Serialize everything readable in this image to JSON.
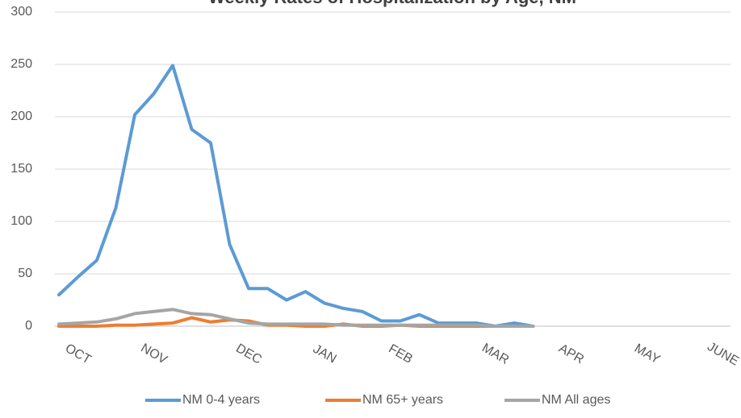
{
  "chart_data": {
    "type": "line",
    "title": "Weekly Rates of Hospitalization by Age, NM",
    "categories": [
      null,
      "OCT",
      null,
      null,
      null,
      "NOV",
      null,
      null,
      null,
      null,
      "DEC",
      null,
      null,
      null,
      "JAN",
      null,
      null,
      null,
      "FEB",
      null,
      null,
      null,
      null,
      "MAR",
      null,
      null,
      null,
      "APR",
      null,
      null,
      null,
      "MAY",
      null,
      null,
      null,
      "JUNE"
    ],
    "series": [
      {
        "name": "NM 0-4 years",
        "color": "#5b9bd5",
        "values": [
          30,
          47,
          63,
          113,
          202,
          222,
          249,
          188,
          175,
          78,
          36,
          36,
          25,
          33,
          22,
          17,
          14,
          5,
          5,
          11,
          3,
          3,
          3,
          0,
          3,
          0,
          null,
          null,
          null,
          null,
          null,
          null,
          null,
          null,
          null,
          null
        ]
      },
      {
        "name": "NM 65+ years",
        "color": "#ed7d31",
        "values": [
          0,
          0,
          0,
          1,
          1,
          2,
          3,
          8,
          4,
          6,
          5,
          1,
          1,
          0,
          0,
          2,
          0,
          0,
          1,
          0,
          0,
          0,
          0,
          0,
          0,
          0,
          null,
          null,
          null,
          null,
          null,
          null,
          null,
          null,
          null,
          null
        ]
      },
      {
        "name": "NM All ages",
        "color": "#a5a5a5",
        "values": [
          2,
          3,
          4,
          7,
          12,
          14,
          16,
          12,
          11,
          7,
          3,
          2,
          2,
          2,
          2,
          1,
          1,
          1,
          1,
          1,
          1,
          1,
          1,
          0,
          0,
          0,
          null,
          null,
          null,
          null,
          null,
          null,
          null,
          null,
          null,
          null
        ]
      }
    ],
    "ylim": [
      0,
      300
    ],
    "yticks": [
      0,
      50,
      100,
      150,
      200,
      250,
      300
    ],
    "grid": true,
    "legend": "bottom"
  }
}
